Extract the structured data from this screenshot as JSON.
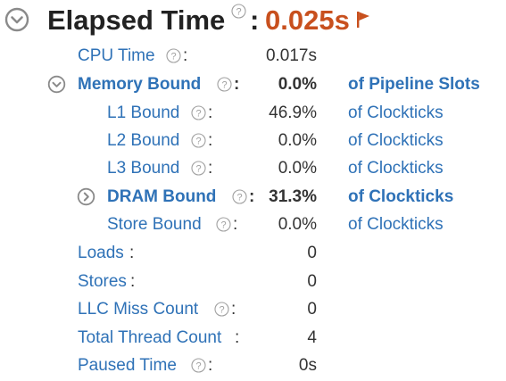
{
  "header": {
    "title": "Elapsed Time",
    "colon": ":",
    "value": "0.025s",
    "value_color": "#c8501e",
    "icons": [
      "collapse-toggle-icon",
      "help-icon",
      "flag-icon"
    ]
  },
  "metrics": [
    {
      "id": "cpu-time",
      "label": "CPU Time",
      "colon": ":",
      "value": "0.017s",
      "unit": ""
    },
    {
      "id": "memory-bound",
      "label": "Memory Bound",
      "colon": ":",
      "value": "0.0%",
      "unit": "of Pipeline Slots"
    },
    {
      "id": "l1-bound",
      "label": "L1 Bound",
      "colon": ":",
      "value": "46.9%",
      "unit": "of Clockticks"
    },
    {
      "id": "l2-bound",
      "label": "L2 Bound",
      "colon": ":",
      "value": "0.0%",
      "unit": "of Clockticks"
    },
    {
      "id": "l3-bound",
      "label": "L3 Bound",
      "colon": ":",
      "value": "0.0%",
      "unit": "of Clockticks"
    },
    {
      "id": "dram-bound",
      "label": "DRAM Bound",
      "colon": ":",
      "value": "31.3%",
      "unit": "of Clockticks"
    },
    {
      "id": "store-bound",
      "label": "Store Bound",
      "colon": ":",
      "value": "0.0%",
      "unit": "of Clockticks"
    },
    {
      "id": "loads",
      "label": "Loads",
      "colon": ":",
      "value": "0",
      "unit": ""
    },
    {
      "id": "stores",
      "label": "Stores",
      "colon": ":",
      "value": "0",
      "unit": ""
    },
    {
      "id": "llc-miss-count",
      "label": "LLC Miss Count",
      "colon": ":",
      "value": "0",
      "unit": ""
    },
    {
      "id": "total-thread-count",
      "label": "Total Thread Count",
      "colon": ":",
      "value": "4",
      "unit": ""
    },
    {
      "id": "paused-time",
      "label": "Paused Time",
      "colon": ":",
      "value": "0s",
      "unit": ""
    }
  ],
  "colors": {
    "link": "#2f72b7",
    "text": "#333333",
    "icon_gray": "#9a9a9a"
  }
}
